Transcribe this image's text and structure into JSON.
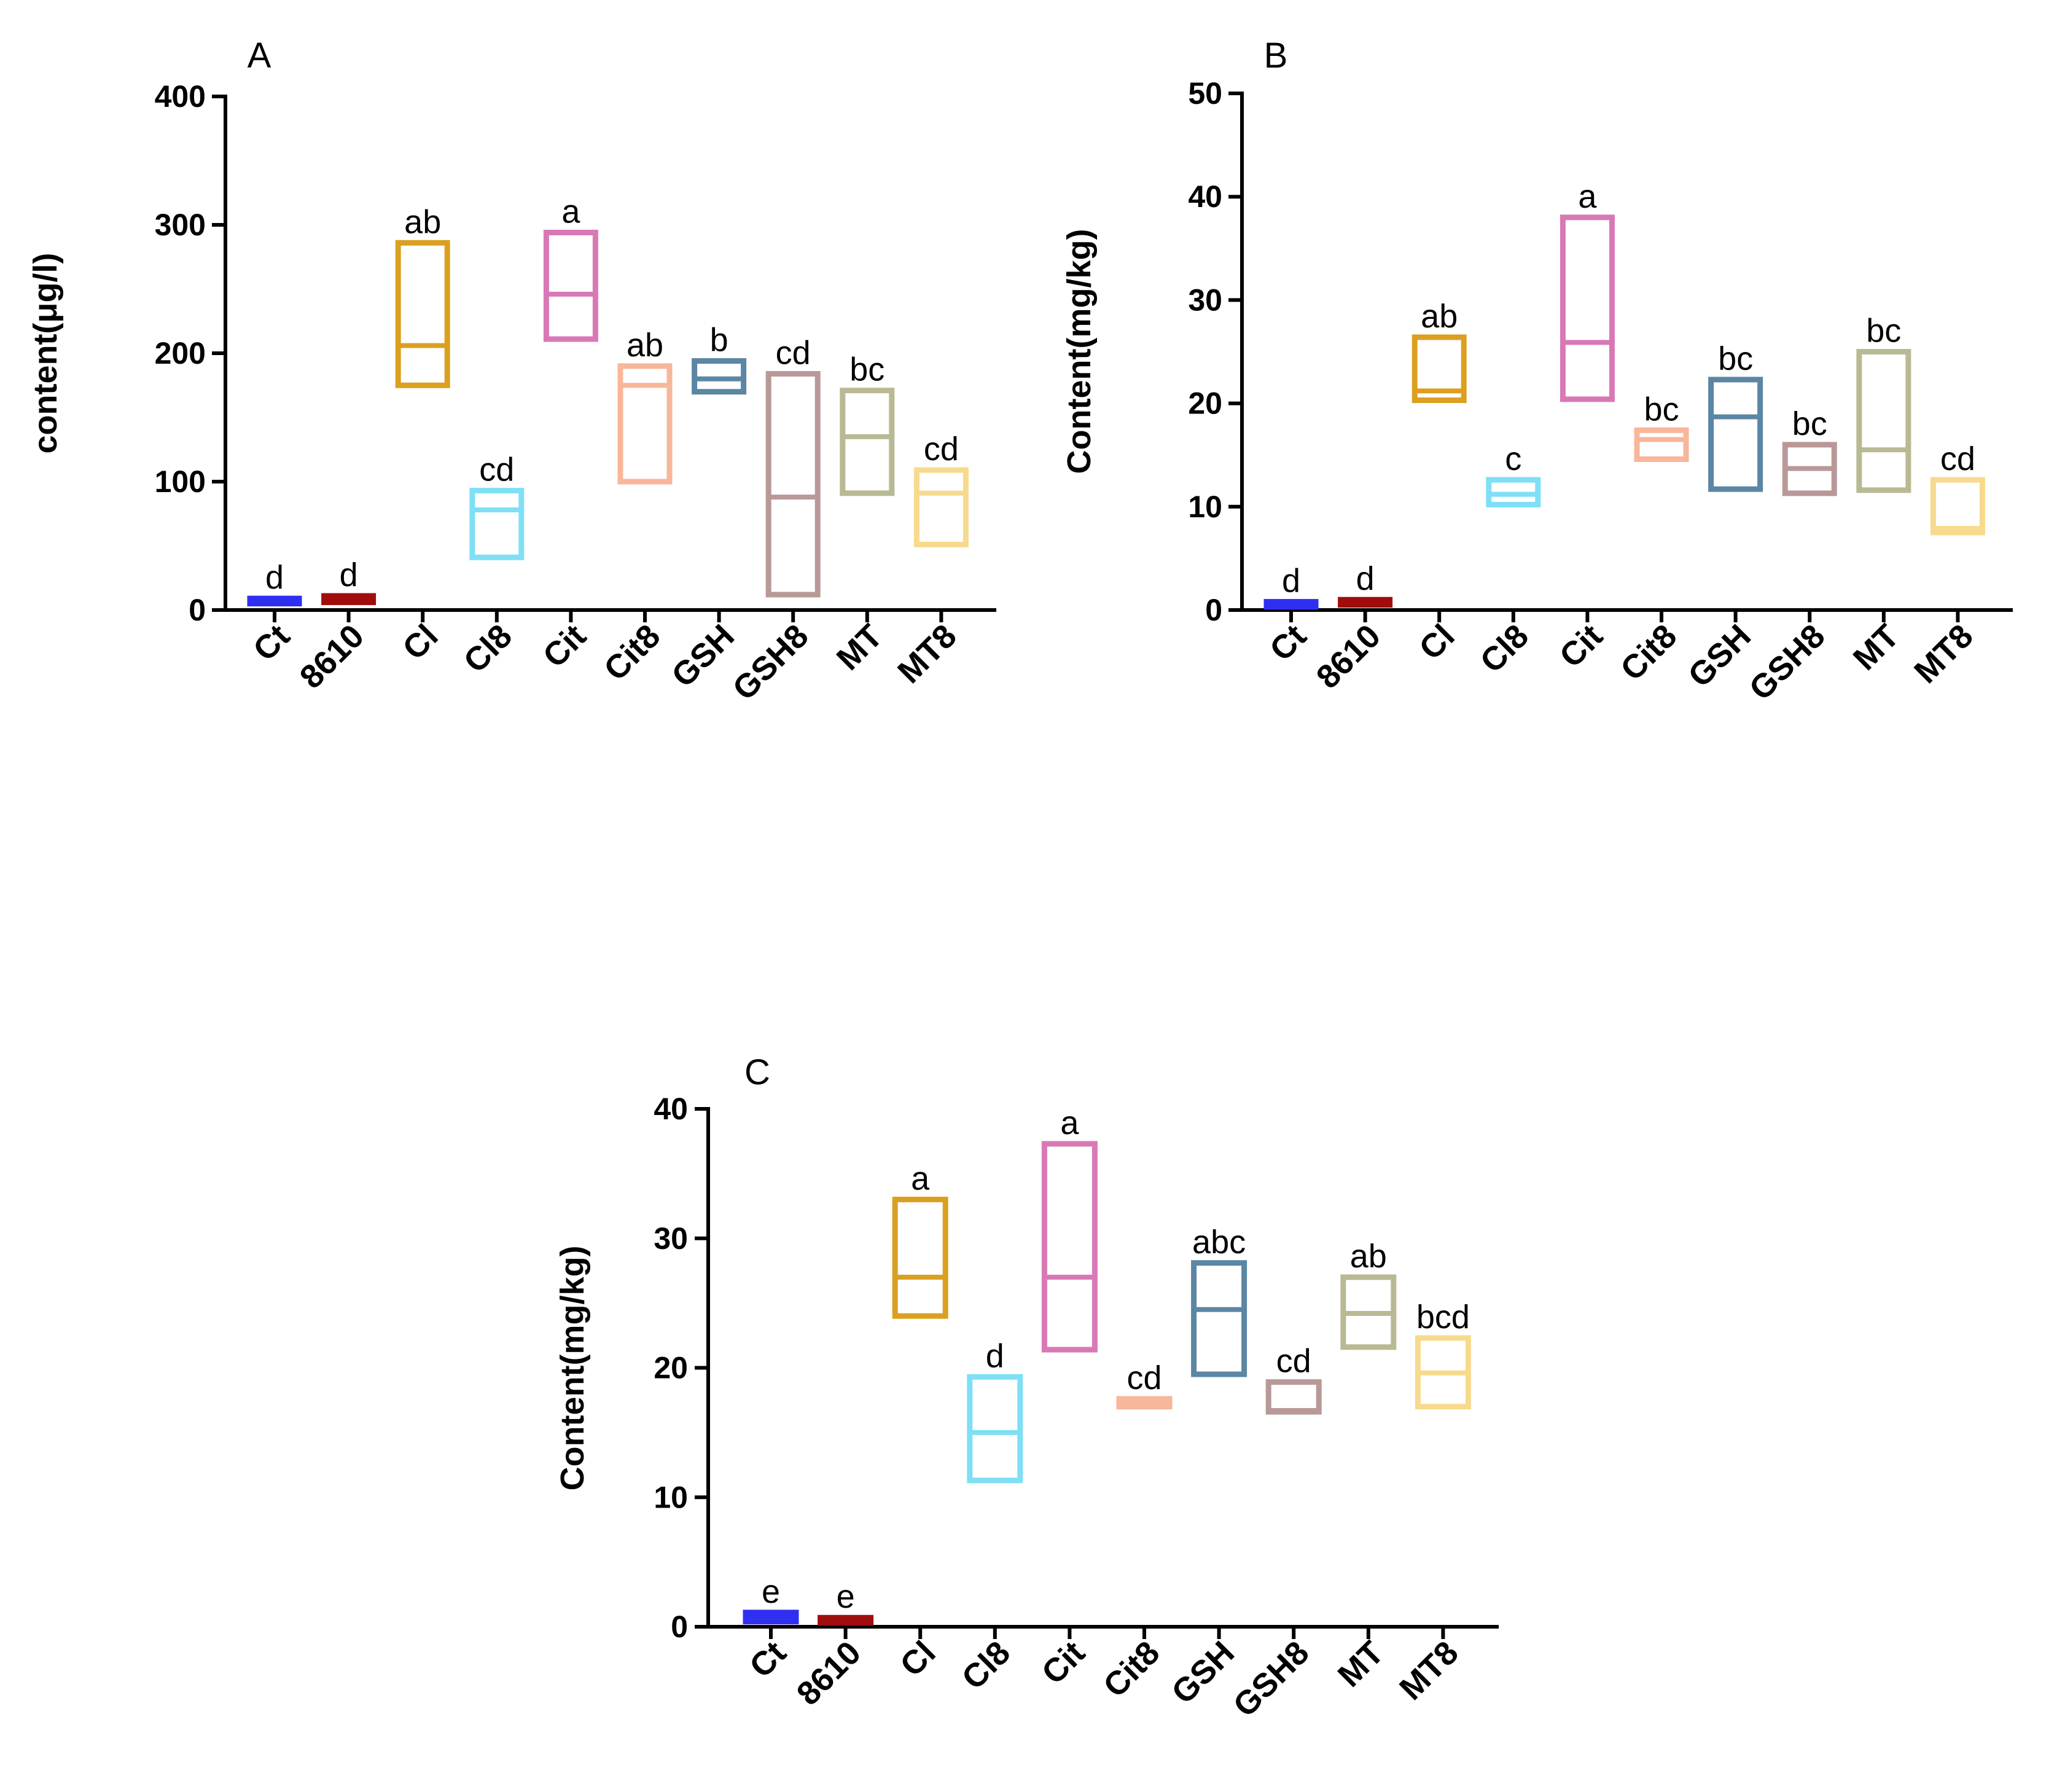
{
  "colors": {
    "Ct": "#2f2ff2",
    "8610": "#a00d0d",
    "Cl": "#dba020",
    "Cl8": "#7fdff5",
    "Cit": "#d879b6",
    "Cit8": "#f8b69a",
    "GSH": "#5b86a4",
    "GSH8": "#b99898",
    "MT": "#b9b994",
    "MT8": "#f7da8e"
  },
  "chart_data": [
    {
      "panel": "A",
      "type": "box",
      "title": "A",
      "xlabel": "",
      "ylabel": "content(μg/l)",
      "ylim": [
        0,
        400
      ],
      "yticks": [
        "0",
        "100",
        "200",
        "300",
        "400"
      ],
      "categories": [
        "Ct",
        "8610",
        "Cl",
        "Cl8",
        "Cit",
        "Cit8",
        "GSH",
        "GSH8",
        "MT",
        "MT8"
      ],
      "boxes": [
        {
          "min": 5,
          "median": 7,
          "max": 9
        },
        {
          "min": 6,
          "median": 9,
          "max": 11
        },
        {
          "min": 175,
          "median": 206,
          "max": 286
        },
        {
          "min": 41,
          "median": 78,
          "max": 93
        },
        {
          "min": 211,
          "median": 246,
          "max": 294
        },
        {
          "min": 100,
          "median": 175,
          "max": 190
        },
        {
          "min": 170,
          "median": 180,
          "max": 194
        },
        {
          "min": 12,
          "median": 88,
          "max": 184
        },
        {
          "min": 91,
          "median": 135,
          "max": 171
        },
        {
          "min": 51,
          "median": 91,
          "max": 109
        }
      ],
      "sig_labels": [
        "d",
        "d",
        "ab",
        "cd",
        "a",
        "ab",
        "b",
        "cd",
        "bc",
        "cd"
      ]
    },
    {
      "panel": "B",
      "type": "box",
      "title": "B",
      "xlabel": "",
      "ylabel": "Content(mg/kg)",
      "ylim": [
        0,
        50
      ],
      "yticks": [
        "0",
        "10",
        "20",
        "30",
        "40",
        "50"
      ],
      "categories": [
        "Ct",
        "8610",
        "Cl",
        "Cl8",
        "Cit",
        "Cit8",
        "GSH",
        "GSH8",
        "MT",
        "MT8"
      ],
      "boxes": [
        {
          "min": 0.3,
          "median": 0.6,
          "max": 0.8
        },
        {
          "min": 0.5,
          "median": 0.7,
          "max": 1.0
        },
        {
          "min": 20.3,
          "median": 21.2,
          "max": 26.4
        },
        {
          "min": 10.2,
          "median": 11.2,
          "max": 12.6
        },
        {
          "min": 20.4,
          "median": 25.9,
          "max": 38.0
        },
        {
          "min": 14.6,
          "median": 16.5,
          "max": 17.4
        },
        {
          "min": 11.7,
          "median": 18.7,
          "max": 22.3
        },
        {
          "min": 11.3,
          "median": 13.7,
          "max": 16.0
        },
        {
          "min": 11.6,
          "median": 15.5,
          "max": 25.0
        },
        {
          "min": 7.5,
          "median": 7.9,
          "max": 12.6
        }
      ],
      "sig_labels": [
        "d",
        "d",
        "ab",
        "c",
        "a",
        "bc",
        "bc",
        "bc",
        "bc",
        "cd"
      ]
    },
    {
      "panel": "C",
      "type": "box",
      "title": "C",
      "xlabel": "",
      "ylabel": "Content(mg/kg)",
      "ylim": [
        0,
        40
      ],
      "yticks": [
        "0",
        "10",
        "20",
        "30",
        "40"
      ],
      "categories": [
        "Ct",
        "8610",
        "Cl",
        "Cl8",
        "Cit",
        "Cit8",
        "GSH",
        "GSH8",
        "MT",
        "MT8"
      ],
      "boxes": [
        {
          "min": 0.4,
          "median": 0.8,
          "max": 1.1
        },
        {
          "min": 0.3,
          "median": 0.5,
          "max": 0.7
        },
        {
          "min": 24.0,
          "median": 27.0,
          "max": 33.0
        },
        {
          "min": 11.3,
          "median": 15.0,
          "max": 19.3
        },
        {
          "min": 21.4,
          "median": 27.0,
          "max": 37.3
        },
        {
          "min": 17.0,
          "median": 17.4,
          "max": 17.6
        },
        {
          "min": 19.5,
          "median": 24.5,
          "max": 28.1
        },
        {
          "min": 16.6,
          "median": 16.7,
          "max": 18.9
        },
        {
          "min": 21.6,
          "median": 24.2,
          "max": 27.0
        },
        {
          "min": 17.0,
          "median": 19.6,
          "max": 22.3
        }
      ],
      "sig_labels": [
        "e",
        "e",
        "a",
        "d",
        "a",
        "cd",
        "abc",
        "cd",
        "ab",
        "bcd"
      ]
    }
  ]
}
